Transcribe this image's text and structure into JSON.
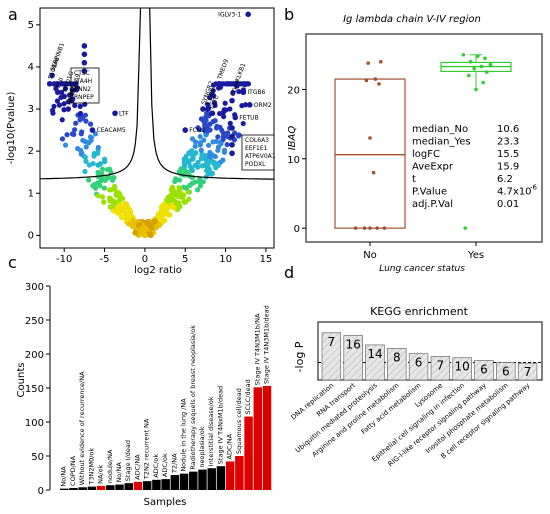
{
  "panel_letters": [
    "a",
    "b",
    "c",
    "d"
  ],
  "colors": {
    "volcano_point": "#1a1a9e",
    "box_no": "#a0522d",
    "box_yes": "#33cc33",
    "bar_black": "#000000",
    "bar_red": "#dd0000",
    "kegg_bar": "#e6e6e6"
  },
  "chart_data": [
    {
      "panel": "a",
      "type": "scatter",
      "xlabel": "log2 ratio",
      "ylabel": "-log10(Pvalue)",
      "xlim": [
        -13,
        16
      ],
      "ylim": [
        -0.3,
        5.4
      ],
      "x_ticks": [
        "-10",
        "-5",
        "0",
        "5",
        "10",
        "15"
      ],
      "y_ticks": [
        "0",
        "1",
        "2",
        "3",
        "4",
        "5"
      ],
      "labels": [
        {
          "text": "IGLV3-1",
          "x": 12.8,
          "y": 5.25
        },
        {
          "text": "CTSC",
          "x": -7.5,
          "y": 4.5
        },
        {
          "text": "LTA4H",
          "x": -7.5,
          "y": 4.3
        },
        {
          "text": "VNN2",
          "x": -7.5,
          "y": 4.1
        },
        {
          "text": "RNPEP",
          "x": -7.5,
          "y": 3.9
        },
        {
          "text": "SERPINB1",
          "x": -11.5,
          "y": 3.8
        },
        {
          "text": "S100A6",
          "x": -11.8,
          "y": 3.6
        },
        {
          "text": "FLII",
          "x": -10.8,
          "y": 3.4
        },
        {
          "text": "MYO1G",
          "x": -10.0,
          "y": 3.3
        },
        {
          "text": "S100A9",
          "x": -9.2,
          "y": 3.2
        },
        {
          "text": "ANXA1",
          "x": -9.5,
          "y": 3.0
        },
        {
          "text": "LTF",
          "x": -3.7,
          "y": 2.9
        },
        {
          "text": "CEACAM5",
          "x": -6.5,
          "y": 2.5
        },
        {
          "text": "ITGB6",
          "x": 12.2,
          "y": 3.4
        },
        {
          "text": "ORM2",
          "x": 13.0,
          "y": 3.1
        },
        {
          "text": "KLKB1",
          "x": 11.4,
          "y": 3.55
        },
        {
          "text": "TMED9",
          "x": 9.2,
          "y": 3.6
        },
        {
          "text": "CD44",
          "x": 10.8,
          "y": 3.2
        },
        {
          "text": "FETUB",
          "x": 11.2,
          "y": 2.8
        },
        {
          "text": "FCN2",
          "x": 5.0,
          "y": 2.5
        },
        {
          "text": "SYNGR2",
          "x": 7.2,
          "y": 3.0
        },
        {
          "text": "CD59",
          "x": 7.8,
          "y": 3.0
        },
        {
          "text": "CLTC",
          "x": 8.3,
          "y": 2.9
        },
        {
          "text": "COL6A3",
          "x": 10.8,
          "y": 2.55
        },
        {
          "text": "EEF1E1",
          "x": 10.8,
          "y": 2.35
        },
        {
          "text": "ATP6V0A1",
          "x": 10.8,
          "y": 2.15
        },
        {
          "text": "PODXL",
          "x": 10.8,
          "y": 1.95
        }
      ]
    },
    {
      "panel": "b",
      "type": "box",
      "title": "Ig lambda chain V-IV region",
      "xlabel": "Lung cancer status",
      "ylabel": "IBAQ",
      "categories": [
        "No",
        "Yes"
      ],
      "ylim": [
        -2,
        28
      ],
      "y_ticks": [
        "0",
        "10",
        "20"
      ],
      "series": [
        {
          "name": "No",
          "q1": 0,
          "median": 10.6,
          "q3": 21.5,
          "whisker_low": 0,
          "whisker_high": 21.5,
          "points": [
            0,
            0,
            0,
            0,
            0,
            8,
            13,
            20.8,
            21.3,
            21.5,
            23.8,
            24
          ]
        },
        {
          "name": "Yes",
          "q1": 22.6,
          "median": 23.3,
          "q3": 23.9,
          "whisker_low": 20,
          "whisker_high": 25,
          "points": [
            0,
            20,
            21,
            22,
            22.5,
            23,
            23.3,
            23.6,
            24,
            24.5,
            24.8,
            25
          ]
        }
      ],
      "stats": [
        {
          "label": "median_No",
          "value": "10.6"
        },
        {
          "label": "median_Yes",
          "value": "23.3"
        },
        {
          "label": "logFC",
          "value": "15.5"
        },
        {
          "label": "AveExpr",
          "value": "15.9"
        },
        {
          "label": "t",
          "value": "6.2"
        },
        {
          "label": "P.Value",
          "value": "4.7x10",
          "sup": "-6"
        },
        {
          "label": "adj.P.Val",
          "value": "0.01"
        }
      ]
    },
    {
      "panel": "c",
      "type": "bar",
      "xlabel": "Samples",
      "ylabel": "Counts",
      "ylim": [
        0,
        300
      ],
      "y_ticks": [
        "0",
        "50",
        "100",
        "150",
        "200",
        "250",
        "300"
      ],
      "categories": [
        "No/NA",
        "COPD/NA",
        "Without evidence of recurrence/NA",
        "T3N2M0/ok",
        "NA/ok",
        "nodule/NA",
        "No/NA",
        "Stage I/dead",
        "ADC/NA",
        "T2N2 recurrent NA",
        "ADC/ok",
        "ADC/ok",
        "T2/NA",
        "Nodule in the lung /NA",
        "Radiotherapy sequels of breast neoplasia/ok",
        "neoplasia/ok",
        "Interstitial disease/ok",
        "Stage IV T4NxM1b/dead",
        "ADC/NA",
        "Squamous cell/dead",
        "SCLC/dead",
        "Stage IV T4N3M1b/NA",
        "Stage IV T4N3M1b/dead"
      ],
      "values": [
        2,
        3,
        4,
        5,
        6,
        7,
        8,
        10,
        12,
        13,
        15,
        16,
        22,
        24,
        27,
        30,
        32,
        35,
        42,
        50,
        108,
        151,
        153
      ],
      "bar_colors": [
        "black",
        "black",
        "black",
        "black",
        "red",
        "black",
        "black",
        "black",
        "red",
        "black",
        "black",
        "black",
        "black",
        "black",
        "black",
        "black",
        "black",
        "black",
        "red",
        "red",
        "red",
        "red",
        "red"
      ]
    },
    {
      "panel": "d",
      "type": "bar",
      "title": "KEGG enrichment",
      "ylabel": "-log P",
      "categories": [
        "DNA replication",
        "RNA transport",
        "Ubiquitin mediated proteolysis",
        "Arginine and proline metabolism",
        "Fatty acid metabolism",
        "Lysosome",
        "Epithelial cell signaling in infection",
        "RIG-I-like receptor signaling pathway",
        "Inositol phosphate metabolism",
        "B cell receptor signaling pathway"
      ],
      "values": [
        3.5,
        3.3,
        2.6,
        2.35,
        1.95,
        1.75,
        1.65,
        1.45,
        1.3,
        1.25
      ],
      "bar_labels": [
        "7",
        "16",
        "14",
        "8",
        "6",
        "7",
        "10",
        "6",
        "6",
        "7"
      ],
      "threshold": 1.3,
      "ylim": [
        0,
        4.3
      ]
    }
  ]
}
